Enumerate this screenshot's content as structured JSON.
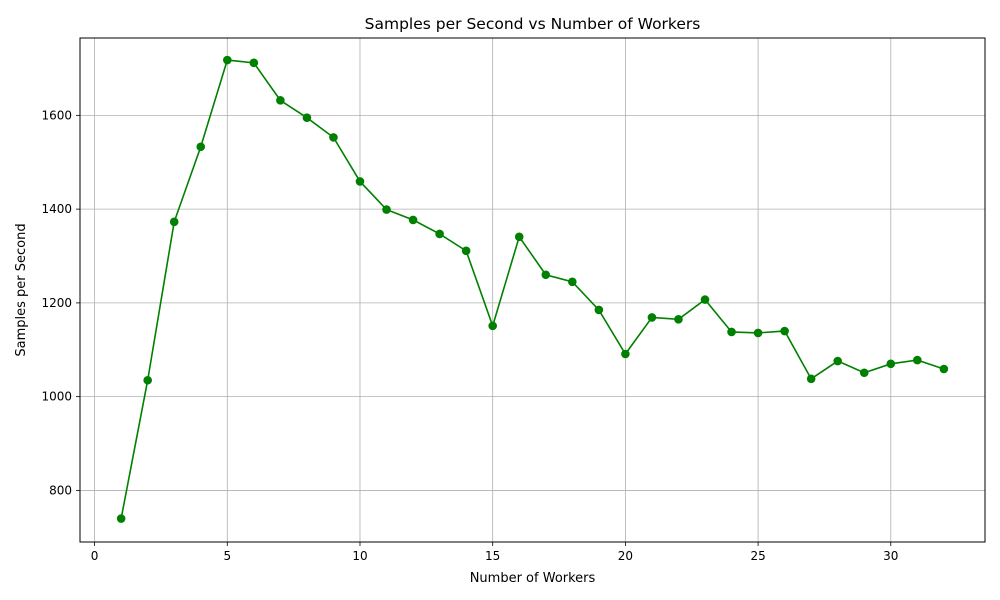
{
  "chart_data": {
    "type": "line",
    "title": "Samples per Second vs Number of Workers",
    "xlabel": "Number of Workers",
    "ylabel": "Samples per Second",
    "xlim": [
      -0.55,
      33.55
    ],
    "ylim": [
      690,
      1765
    ],
    "xticks": [
      0,
      5,
      10,
      15,
      20,
      25,
      30
    ],
    "yticks": [
      800,
      1000,
      1200,
      1400,
      1600
    ],
    "grid": true,
    "line_color": "#008000",
    "marker": "circle",
    "series": [
      {
        "x": [
          1,
          2,
          3,
          4,
          5,
          6,
          7,
          8,
          9,
          10,
          11,
          12,
          13,
          14,
          15,
          16,
          17,
          18,
          19,
          20,
          21,
          22,
          23,
          24,
          25,
          26,
          27,
          28,
          29,
          30,
          31,
          32
        ],
        "values": [
          740,
          1035,
          1373,
          1533,
          1718,
          1712,
          1632,
          1595,
          1553,
          1459,
          1399,
          1377,
          1347,
          1311,
          1151,
          1341,
          1260,
          1245,
          1185,
          1091,
          1169,
          1165,
          1207,
          1138,
          1136,
          1140,
          1038,
          1076,
          1051,
          1070,
          1078,
          1059
        ]
      }
    ]
  }
}
